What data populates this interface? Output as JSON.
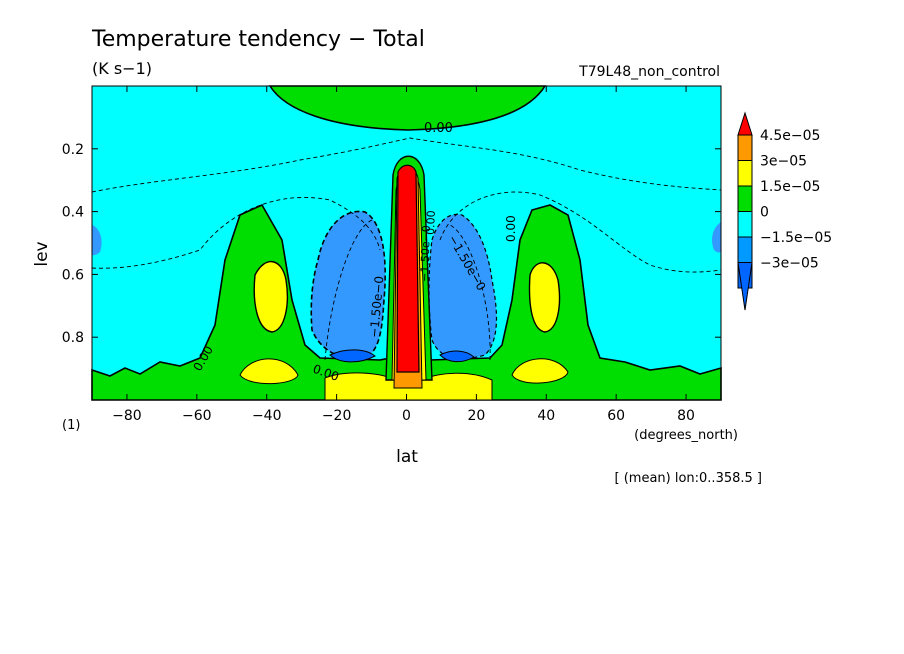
{
  "chart_data": {
    "type": "heatmap",
    "title": "Temperature tendency − Total",
    "units": "(K s−1)",
    "run_name": "T79L48_non_control",
    "xlabel": "lat",
    "x_units": "(degrees_north)",
    "ylabel": "lev",
    "y_units": "(1)",
    "footer": "[ (mean) lon:0..358.5 ]",
    "xlim": [
      -90,
      90
    ],
    "ylim": [
      1.0,
      0.0
    ],
    "x_ticks": [
      -80,
      -60,
      -40,
      -20,
      0,
      20,
      40,
      60,
      80
    ],
    "x_tick_labels": [
      "−80",
      "−60",
      "−40",
      "−20",
      "0",
      "20",
      "40",
      "60",
      "80"
    ],
    "y_ticks": [
      0.2,
      0.4,
      0.6,
      0.8
    ],
    "y_tick_labels": [
      "0.2",
      "0.4",
      "0.6",
      "0.8"
    ],
    "color_levels": [
      {
        "label": "4.5e−05",
        "value": 4.5e-05,
        "color": "#ff0000"
      },
      {
        "label": "3e−05",
        "value": 3e-05,
        "color": "#ff9900"
      },
      {
        "label": "1.5e−05",
        "value": 1.5e-05,
        "color": "#ffff00"
      },
      {
        "label": "0",
        "value": 0,
        "color": "#00dd00"
      },
      {
        "label": "−1.5e−05",
        "value": -1.5e-05,
        "color": "#00ffff"
      },
      {
        "label": "−3e−05",
        "value": -3e-05,
        "color": "#0099ff"
      }
    ],
    "top_color": "#ff0000",
    "bottom_color": "#0066ff",
    "contour_labels": [
      "0.00",
      "0.00",
      "0.00",
      "0.00",
      "−1.50e−0",
      "−1.50e−0",
      "−1.50e−0",
      "0.00"
    ],
    "background_field": "#00ffff"
  }
}
